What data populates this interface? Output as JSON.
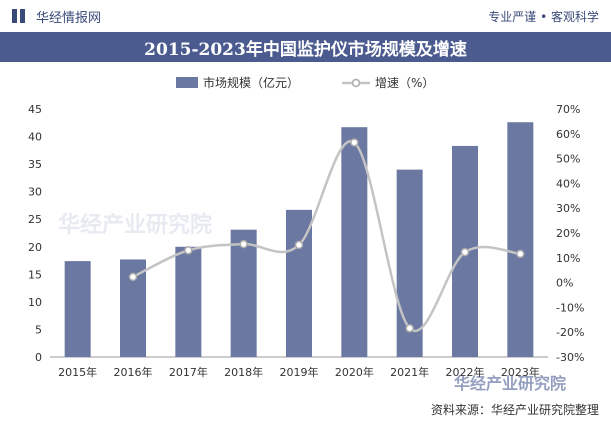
{
  "header": {
    "brand": "华经情报网",
    "slogan": "专业严谨 • 客观科学",
    "title": "2015-2023年中国监护仪市场规模及增速"
  },
  "footer": {
    "watermark": "华经产业研究院",
    "source": "资料来源：华经产业研究院整理"
  },
  "colors": {
    "bar": "#6a78a2",
    "line": "#c4c4c4",
    "title_bg": "#4b5b8f",
    "brand": "#3a4a78"
  },
  "chart_data": {
    "type": "bar",
    "title": "2015-2023年中国监护仪市场规模及增速",
    "categories": [
      "2015年",
      "2016年",
      "2017年",
      "2018年",
      "2019年",
      "2020年",
      "2021年",
      "2022年",
      "2023年"
    ],
    "series": [
      {
        "name": "市场规模（亿元）",
        "type": "bar",
        "axis": "left",
        "values": [
          17.4,
          17.7,
          20.0,
          23.1,
          26.7,
          41.7,
          34.0,
          38.3,
          42.6
        ]
      },
      {
        "name": "增速（%）",
        "type": "line",
        "axis": "right",
        "values": [
          null,
          2.3,
          13.0,
          15.5,
          15.2,
          56.5,
          -18.4,
          12.3,
          11.6
        ]
      }
    ],
    "ylim_left": [
      0,
      45
    ],
    "yticks_left": [
      "0",
      "5",
      "10",
      "15",
      "20",
      "25",
      "30",
      "35",
      "40",
      "45"
    ],
    "ylim_right": [
      -30,
      70
    ],
    "yticks_right": [
      "-30%",
      "-20%",
      "-10%",
      "0%",
      "10%",
      "20%",
      "30%",
      "40%",
      "50%",
      "60%",
      "70%"
    ],
    "legend": "top-center",
    "grid": false
  }
}
